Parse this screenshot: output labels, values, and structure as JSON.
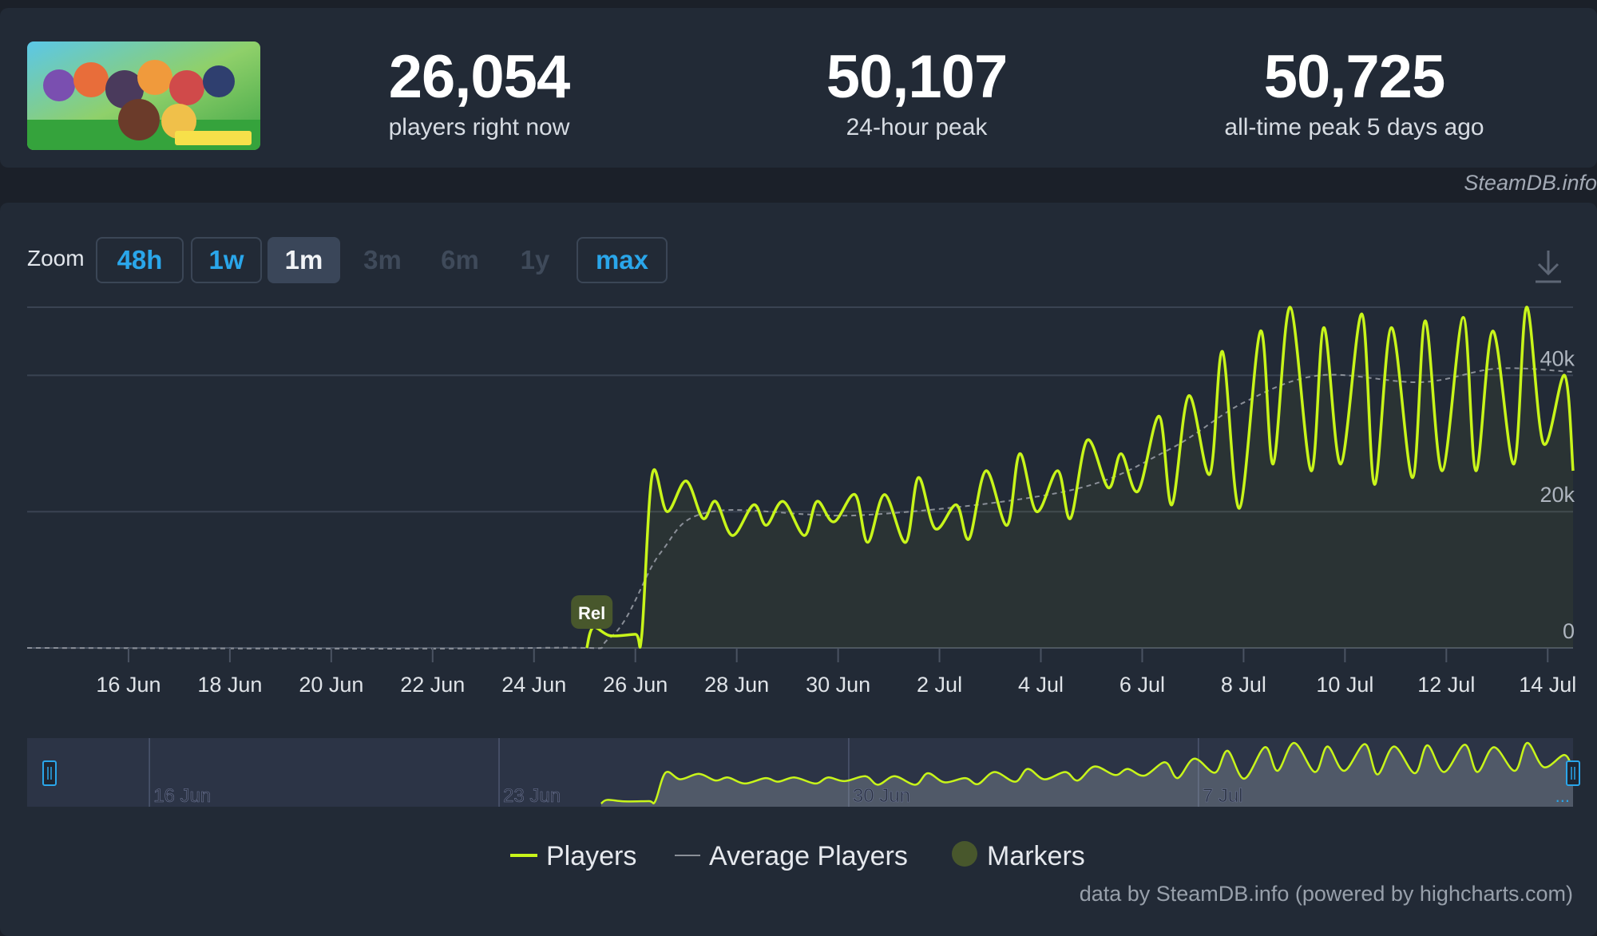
{
  "stats": {
    "current": {
      "value": "26,054",
      "label": "players right now"
    },
    "peak24": {
      "value": "50,107",
      "label": "24-hour peak"
    },
    "alltime": {
      "value": "50,725",
      "label": "all-time peak 5 days ago"
    }
  },
  "credit_top": "SteamDB.info",
  "credit_bottom": "data by SteamDB.info (powered by highcharts.com)",
  "zoom": {
    "label": "Zoom",
    "buttons": [
      {
        "label": "48h",
        "state": "enabled"
      },
      {
        "label": "1w",
        "state": "enabled"
      },
      {
        "label": "1m",
        "state": "selected"
      },
      {
        "label": "3m",
        "state": "disabled"
      },
      {
        "label": "6m",
        "state": "disabled"
      },
      {
        "label": "1y",
        "state": "disabled"
      },
      {
        "label": "max",
        "state": "enabled"
      }
    ]
  },
  "icons": {
    "download": "download-icon",
    "thumbnail": "game-thumbnail-image"
  },
  "colors": {
    "players": "#c8f51a",
    "average": "#8a8f98",
    "marker": "#48572c",
    "background": "#222a36",
    "accent": "#2aa6ea"
  },
  "chart_data": {
    "type": "line",
    "x_unit": "date (2025)",
    "xlim": [
      "2025-06-14",
      "2025-07-14 12:00"
    ],
    "ylim": [
      0,
      50000
    ],
    "y_ticks": [
      0,
      20000,
      40000
    ],
    "y_tick_labels": [
      "0",
      "20k",
      "40k"
    ],
    "x_tick_labels": [
      "16 Jun",
      "18 Jun",
      "20 Jun",
      "22 Jun",
      "24 Jun",
      "26 Jun",
      "28 Jun",
      "30 Jun",
      "2 Jul",
      "4 Jul",
      "6 Jul",
      "8 Jul",
      "10 Jul",
      "12 Jul",
      "14 Jul"
    ],
    "grid": true,
    "legend_position": "bottom",
    "series": [
      {
        "name": "Players",
        "x": [
          "2025-06-25 01:00",
          "2025-06-25 04:00",
          "2025-06-25 12:00",
          "2025-06-26 00:00",
          "2025-06-26 03:00",
          "2025-06-26 08:00",
          "2025-06-26 15:00",
          "2025-06-27 00:00",
          "2025-06-27 08:00",
          "2025-06-27 14:00",
          "2025-06-27 22:00",
          "2025-06-28 08:00",
          "2025-06-28 14:00",
          "2025-06-28 22:00",
          "2025-06-29 08:00",
          "2025-06-29 14:00",
          "2025-06-29 22:00",
          "2025-06-30 08:00",
          "2025-06-30 14:00",
          "2025-06-30 22:00",
          "2025-07-01 08:00",
          "2025-07-01 14:00",
          "2025-07-01 22:00",
          "2025-07-02 08:00",
          "2025-07-02 14:00",
          "2025-07-02 22:00",
          "2025-07-03 08:00",
          "2025-07-03 14:00",
          "2025-07-03 22:00",
          "2025-07-04 08:00",
          "2025-07-04 14:00",
          "2025-07-04 22:00",
          "2025-07-05 08:00",
          "2025-07-05 14:00",
          "2025-07-05 22:00",
          "2025-07-06 08:00",
          "2025-07-06 14:00",
          "2025-07-06 22:00",
          "2025-07-07 08:00",
          "2025-07-07 14:00",
          "2025-07-07 22:00",
          "2025-07-08 08:00",
          "2025-07-08 14:00",
          "2025-07-08 22:00",
          "2025-07-09 08:00",
          "2025-07-09 14:00",
          "2025-07-09 22:00",
          "2025-07-10 08:00",
          "2025-07-10 14:00",
          "2025-07-10 22:00",
          "2025-07-11 08:00",
          "2025-07-11 14:00",
          "2025-07-11 22:00",
          "2025-07-12 08:00",
          "2025-07-12 14:00",
          "2025-07-12 22:00",
          "2025-07-13 08:00",
          "2025-07-13 14:00",
          "2025-07-13 22:00",
          "2025-07-14 08:00",
          "2025-07-14 12:00"
        ],
        "y": [
          0,
          3000,
          1800,
          2000,
          1800,
          25500,
          20000,
          24500,
          19000,
          21500,
          16500,
          21000,
          18000,
          21500,
          16500,
          21500,
          18500,
          22500,
          15500,
          22500,
          15500,
          25000,
          17500,
          21000,
          16000,
          26000,
          18000,
          28500,
          20000,
          26000,
          19000,
          30500,
          23500,
          28500,
          23000,
          34000,
          21000,
          37000,
          25500,
          43500,
          20500,
          46500,
          27000,
          50000,
          26000,
          47000,
          27000,
          49000,
          24000,
          47000,
          25000,
          48000,
          26000,
          48500,
          26000,
          46500,
          27000,
          50000,
          30000,
          40000,
          26000
        ]
      },
      {
        "name": "Average Players",
        "x": [
          "2025-06-14",
          "2025-06-24",
          "2025-06-25 12:00",
          "2025-06-26 12:00",
          "2025-06-27 12:00",
          "2025-06-30 12:00",
          "2025-07-04 12:00",
          "2025-07-06 12:00",
          "2025-07-08",
          "2025-07-09 12:00",
          "2025-07-11 12:00",
          "2025-07-13",
          "2025-07-14 12:00"
        ],
        "y": [
          0,
          0,
          1500,
          14000,
          20000,
          19500,
          23000,
          29000,
          36000,
          40000,
          39000,
          41000,
          40500
        ]
      }
    ],
    "markers": [
      {
        "x": "2025-06-25 03:00",
        "label": "Rel"
      }
    ],
    "navigator": {
      "x_tick_labels": [
        "16 Jun",
        "23 Jun",
        "30 Jun",
        "7 Jul"
      ],
      "more_label": "...",
      "range": [
        "2025-06-14",
        "2025-07-14 12:00"
      ]
    },
    "legend": [
      {
        "name": "Players",
        "symbol": "line"
      },
      {
        "name": "Average Players",
        "symbol": "line"
      },
      {
        "name": "Markers",
        "symbol": "circle"
      }
    ]
  }
}
